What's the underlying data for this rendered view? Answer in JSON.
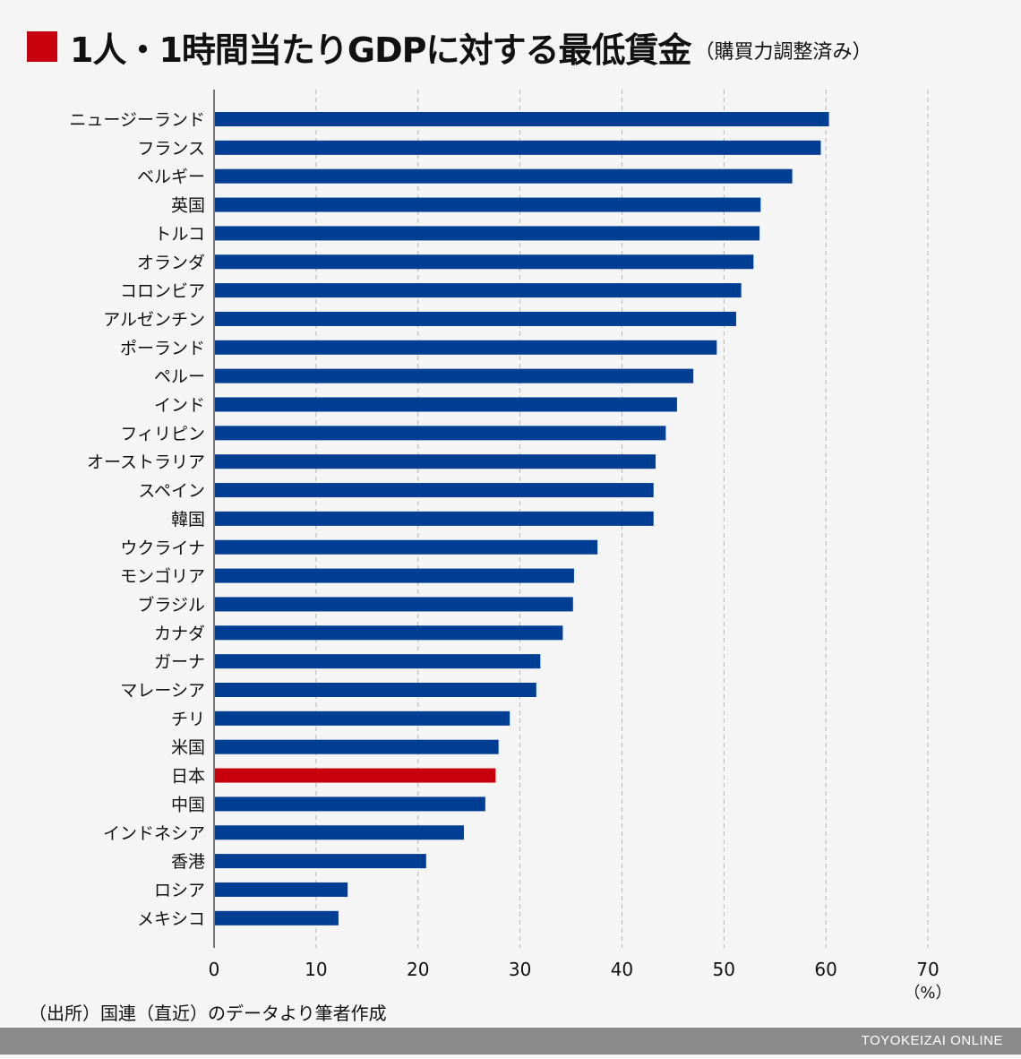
{
  "title": {
    "main": "1人・1時間当たりGDPに対する最低賃金",
    "sub": "（購買力調整済み）"
  },
  "source": "（出所）国連（直近）のデータより筆者作成",
  "footer": {
    "brand": "TOYOKEIZAI ONLINE"
  },
  "colors": {
    "bar_default": "#003e93",
    "bar_highlight": "#c8000b",
    "accent_square": "#c8000b",
    "footer_bg": "#8a8a8a"
  },
  "chart_data": {
    "type": "bar",
    "orientation": "horizontal",
    "unit_label": "（%）",
    "xlim": [
      0,
      70
    ],
    "ticks": [
      0,
      10,
      20,
      30,
      40,
      50,
      60,
      70
    ],
    "grid": "vertical-dashed",
    "highlight": "日本",
    "categories": [
      "ニュージーランド",
      "フランス",
      "ベルギー",
      "英国",
      "トルコ",
      "オランダ",
      "コロンビア",
      "アルゼンチン",
      "ポーランド",
      "ペルー",
      "インド",
      "フィリピン",
      "オーストラリア",
      "スペイン",
      "韓国",
      "ウクライナ",
      "モンゴリア",
      "ブラジル",
      "カナダ",
      "ガーナ",
      "マレーシア",
      "チリ",
      "米国",
      "日本",
      "中国",
      "インドネシア",
      "香港",
      "ロシア",
      "メキシコ"
    ],
    "values": [
      60.3,
      59.5,
      56.7,
      53.6,
      53.5,
      52.9,
      51.7,
      51.2,
      49.3,
      47.0,
      45.4,
      44.3,
      43.3,
      43.1,
      43.1,
      37.6,
      35.3,
      35.2,
      34.2,
      32.0,
      31.6,
      29.0,
      27.9,
      27.6,
      26.6,
      24.5,
      20.8,
      13.1,
      12.2
    ]
  }
}
